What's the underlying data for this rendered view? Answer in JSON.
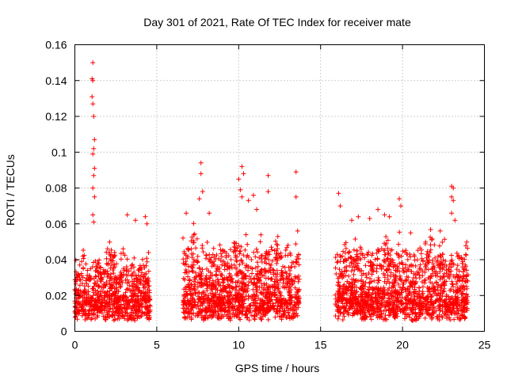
{
  "chart_data": {
    "type": "scatter",
    "title": "Day 301 of 2021, Rate Of TEC Index for receiver mate",
    "xlabel": "GPS time / hours",
    "ylabel": "ROTI / TECUs",
    "xlim": [
      0,
      25
    ],
    "ylim": [
      0,
      0.16
    ],
    "xticks": [
      0,
      5,
      10,
      15,
      20,
      25
    ],
    "xtick_labels": [
      "0",
      "5",
      "10",
      "15",
      "20",
      "25"
    ],
    "yticks": [
      0,
      0.02,
      0.04,
      0.06,
      0.08,
      0.1,
      0.12,
      0.14,
      0.16
    ],
    "ytick_labels": [
      "0",
      "0.02",
      "0.04",
      "0.06",
      "0.08",
      "0.1",
      "0.12",
      "0.14",
      "0.16"
    ],
    "grid": true,
    "marker": "+",
    "color": "#ff0000",
    "series": [
      {
        "name": "ROTI",
        "segments": [
          {
            "start": 0.0,
            "end": 4.6,
            "base": 0.012,
            "spread": 0.022
          },
          {
            "start": 6.6,
            "end": 13.7,
            "base": 0.012,
            "spread": 0.028
          },
          {
            "start": 15.9,
            "end": 24.0,
            "base": 0.012,
            "spread": 0.026
          }
        ],
        "peaks": [
          {
            "x": 1.1,
            "y": 0.15
          },
          {
            "x": 1.05,
            "y": 0.141
          },
          {
            "x": 1.1,
            "y": 0.14
          },
          {
            "x": 1.05,
            "y": 0.131
          },
          {
            "x": 1.1,
            "y": 0.127
          },
          {
            "x": 1.15,
            "y": 0.12
          },
          {
            "x": 1.2,
            "y": 0.107
          },
          {
            "x": 1.15,
            "y": 0.102
          },
          {
            "x": 1.1,
            "y": 0.099
          },
          {
            "x": 1.2,
            "y": 0.091
          },
          {
            "x": 1.15,
            "y": 0.087
          },
          {
            "x": 1.1,
            "y": 0.08
          },
          {
            "x": 1.2,
            "y": 0.075
          },
          {
            "x": 1.1,
            "y": 0.065
          },
          {
            "x": 1.15,
            "y": 0.061
          },
          {
            "x": 0.5,
            "y": 0.03
          },
          {
            "x": 3.2,
            "y": 0.065
          },
          {
            "x": 3.7,
            "y": 0.062
          },
          {
            "x": 4.3,
            "y": 0.064
          },
          {
            "x": 4.4,
            "y": 0.06
          },
          {
            "x": 7.7,
            "y": 0.094
          },
          {
            "x": 7.7,
            "y": 0.088
          },
          {
            "x": 7.8,
            "y": 0.078
          },
          {
            "x": 7.6,
            "y": 0.074
          },
          {
            "x": 6.8,
            "y": 0.066
          },
          {
            "x": 8.2,
            "y": 0.066
          },
          {
            "x": 10.2,
            "y": 0.092
          },
          {
            "x": 10.3,
            "y": 0.088
          },
          {
            "x": 10.0,
            "y": 0.085
          },
          {
            "x": 10.1,
            "y": 0.079
          },
          {
            "x": 10.2,
            "y": 0.075
          },
          {
            "x": 10.9,
            "y": 0.076
          },
          {
            "x": 10.6,
            "y": 0.073
          },
          {
            "x": 11.1,
            "y": 0.068
          },
          {
            "x": 11.8,
            "y": 0.087
          },
          {
            "x": 11.8,
            "y": 0.078
          },
          {
            "x": 13.5,
            "y": 0.089
          },
          {
            "x": 13.5,
            "y": 0.075
          },
          {
            "x": 13.6,
            "y": 0.056
          },
          {
            "x": 16.1,
            "y": 0.077
          },
          {
            "x": 16.2,
            "y": 0.07
          },
          {
            "x": 16.9,
            "y": 0.062
          },
          {
            "x": 17.3,
            "y": 0.064
          },
          {
            "x": 18.0,
            "y": 0.063
          },
          {
            "x": 18.5,
            "y": 0.068
          },
          {
            "x": 18.9,
            "y": 0.065
          },
          {
            "x": 19.2,
            "y": 0.064
          },
          {
            "x": 19.8,
            "y": 0.074
          },
          {
            "x": 19.9,
            "y": 0.07
          },
          {
            "x": 20.5,
            "y": 0.055
          },
          {
            "x": 22.3,
            "y": 0.056
          },
          {
            "x": 23.0,
            "y": 0.081
          },
          {
            "x": 23.1,
            "y": 0.08
          },
          {
            "x": 23.0,
            "y": 0.075
          },
          {
            "x": 23.1,
            "y": 0.073
          },
          {
            "x": 23.0,
            "y": 0.066
          },
          {
            "x": 23.2,
            "y": 0.062
          }
        ]
      }
    ]
  }
}
